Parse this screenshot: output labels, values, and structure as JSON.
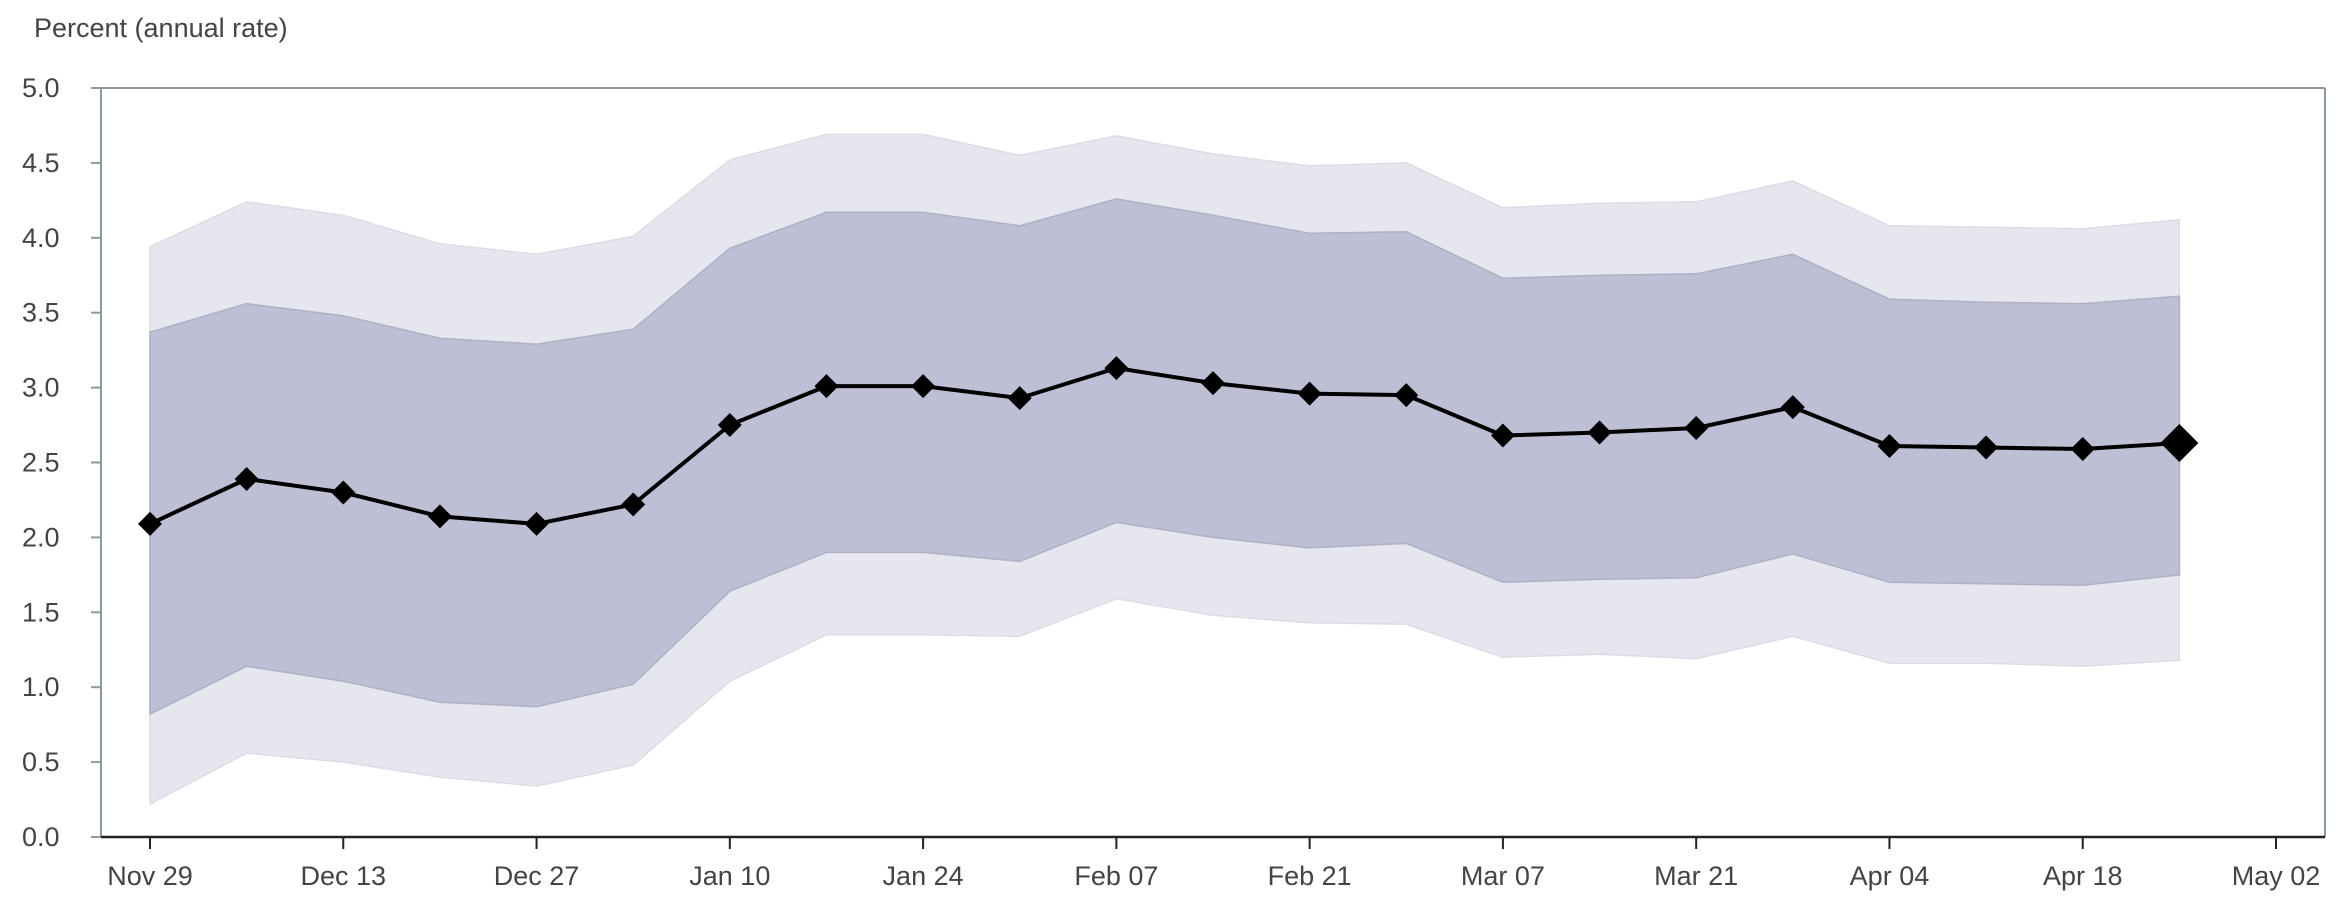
{
  "chart_data": {
    "type": "line",
    "ylabel": "Percent (annual rate)",
    "xlim": [
      "2020-11-29",
      "2021-05-02"
    ],
    "ylim": [
      0,
      5
    ],
    "yticks": [
      0.0,
      0.5,
      1.0,
      1.5,
      2.0,
      2.5,
      3.0,
      3.5,
      4.0,
      4.5,
      5.0
    ],
    "ytick_labels": [
      "0.0",
      "0.5",
      "1.0",
      "1.5",
      "2.0",
      "2.5",
      "3.0",
      "3.5",
      "4.0",
      "4.5",
      "5.0"
    ],
    "xticks": [
      "2020-11-29",
      "2020-12-13",
      "2020-12-27",
      "2021-01-10",
      "2021-01-24",
      "2021-02-07",
      "2021-02-21",
      "2021-03-07",
      "2021-03-21",
      "2021-04-04",
      "2021-04-18",
      "2021-05-02"
    ],
    "xtick_labels": [
      "Nov 29",
      "Dec 13",
      "Dec 27",
      "Jan 10",
      "Jan 24",
      "Feb 07",
      "Feb 21",
      "Mar 07",
      "Mar 21",
      "Apr 04",
      "Apr 18",
      "May 02"
    ],
    "x": [
      "2020-11-29",
      "2020-12-06",
      "2020-12-13",
      "2020-12-20",
      "2020-12-27",
      "2021-01-03",
      "2021-01-10",
      "2021-01-17",
      "2021-01-24",
      "2021-01-31",
      "2021-02-07",
      "2021-02-14",
      "2021-02-21",
      "2021-02-28",
      "2021-03-07",
      "2021-03-14",
      "2021-03-21",
      "2021-03-28",
      "2021-04-04",
      "2021-04-11",
      "2021-04-18",
      "2021-04-25"
    ],
    "series": [
      {
        "values": [
          2.09,
          2.39,
          2.3,
          2.14,
          2.09,
          2.22,
          2.75,
          3.01,
          3.01,
          2.93,
          3.13,
          3.03,
          2.96,
          2.95,
          2.68,
          2.7,
          2.73,
          2.87,
          2.61,
          2.6,
          2.59,
          2.63
        ],
        "color": "#000000"
      }
    ],
    "bands": [
      {
        "lower": [
          0.22,
          0.56,
          0.5,
          0.4,
          0.34,
          0.48,
          1.04,
          1.35,
          1.35,
          1.34,
          1.59,
          1.48,
          1.43,
          1.42,
          1.2,
          1.22,
          1.19,
          1.34,
          1.16,
          1.16,
          1.14,
          1.18
        ],
        "upper": [
          3.94,
          4.24,
          4.15,
          3.96,
          3.89,
          4.01,
          4.52,
          4.69,
          4.69,
          4.55,
          4.68,
          4.56,
          4.48,
          4.5,
          4.2,
          4.23,
          4.24,
          4.38,
          4.08,
          4.07,
          4.06,
          4.12
        ],
        "color": "#e6e6ef"
      },
      {
        "lower": [
          0.82,
          1.14,
          1.04,
          0.9,
          0.87,
          1.02,
          1.64,
          1.9,
          1.9,
          1.84,
          2.1,
          2.0,
          1.93,
          1.96,
          1.7,
          1.72,
          1.73,
          1.89,
          1.7,
          1.69,
          1.68,
          1.75
        ],
        "upper": [
          3.37,
          3.56,
          3.48,
          3.33,
          3.29,
          3.39,
          3.93,
          4.17,
          4.17,
          4.08,
          4.26,
          4.15,
          4.03,
          4.04,
          3.73,
          3.75,
          3.76,
          3.89,
          3.59,
          3.57,
          3.56,
          3.61
        ],
        "color": "#bdbfd4"
      }
    ],
    "grid": false
  }
}
